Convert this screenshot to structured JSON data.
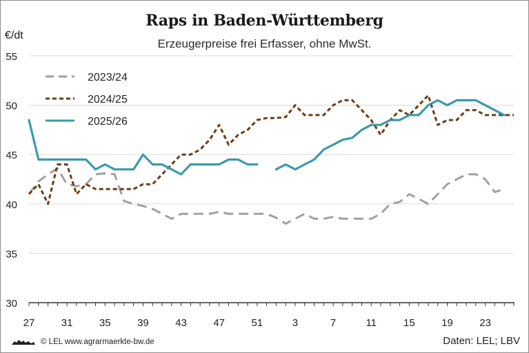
{
  "title": "Raps in Baden-Württemberg",
  "subtitle": "Erzeugerpreise frei Erfasser, ohne MwSt.",
  "unit_label": "€/dt",
  "copyright": "© LEL www.agrarmaerkte-bw.de",
  "source": "Daten: LEL; LBV",
  "chart_data": {
    "type": "line",
    "title": "Raps in Baden-Württemberg",
    "subtitle": "Erzeugerpreise frei Erfasser, ohne MwSt.",
    "ylabel": "€/dt",
    "xlabel": "",
    "ylim": [
      30,
      55
    ],
    "yticks": [
      30,
      35,
      40,
      45,
      50,
      55
    ],
    "x_tick_labels": [
      "27",
      "31",
      "35",
      "39",
      "43",
      "47",
      "51",
      "3",
      "7",
      "11",
      "15",
      "19",
      "23"
    ],
    "grid": "horizontal",
    "legend_position": "top-left",
    "x_sequence": [
      27,
      28,
      29,
      30,
      31,
      32,
      33,
      34,
      35,
      36,
      37,
      38,
      39,
      40,
      41,
      42,
      43,
      44,
      45,
      46,
      47,
      48,
      49,
      50,
      51,
      52,
      1,
      2,
      3,
      4,
      5,
      6,
      7,
      8,
      9,
      10,
      11,
      12,
      13,
      14,
      15,
      16,
      17,
      18,
      19,
      20,
      21,
      22,
      23,
      24,
      25,
      26
    ],
    "series": [
      {
        "name": "2023/24",
        "color": "#a0a0a0",
        "style": "dashed",
        "values": [
          41.0,
          42.3,
          43.0,
          43.6,
          42.0,
          41.8,
          42.0,
          43.0,
          43.1,
          43.0,
          40.3,
          40.0,
          39.8,
          39.5,
          39.0,
          38.5,
          39.0,
          39.0,
          39.0,
          39.0,
          39.2,
          39.0,
          39.0,
          39.0,
          39.0,
          39.0,
          38.6,
          38.0,
          38.5,
          39.0,
          38.5,
          38.5,
          38.7,
          38.5,
          38.5,
          38.5,
          38.5,
          39.0,
          40.0,
          40.2,
          41.0,
          40.5,
          40.0,
          41.0,
          42.0,
          42.5,
          43.0,
          43.0,
          42.5,
          41.2,
          41.5,
          null
        ]
      },
      {
        "name": "2024/25",
        "color": "#6b3d14",
        "style": "dashed",
        "values": [
          41.0,
          42.0,
          40.0,
          44.0,
          44.0,
          41.0,
          42.0,
          41.5,
          41.5,
          41.5,
          41.5,
          41.5,
          42.0,
          42.0,
          43.0,
          44.0,
          45.0,
          45.0,
          45.5,
          46.5,
          48.0,
          46.0,
          47.0,
          47.5,
          48.5,
          48.7,
          48.7,
          48.8,
          50.0,
          49.0,
          49.0,
          49.0,
          50.0,
          50.5,
          50.5,
          49.5,
          48.5,
          47.0,
          48.5,
          49.5,
          49.0,
          50.0,
          51.0,
          48.0,
          48.5,
          48.5,
          49.5,
          49.5,
          49.0,
          49.0,
          49.0,
          49.0
        ]
      },
      {
        "name": "2025/26",
        "color": "#3a9aaa",
        "style": "solid",
        "values": [
          48.5,
          44.5,
          44.5,
          44.5,
          44.5,
          44.5,
          44.5,
          43.5,
          44.0,
          43.5,
          43.5,
          43.5,
          45.0,
          44.0,
          44.0,
          43.5,
          43.0,
          44.0,
          44.0,
          44.0,
          44.0,
          44.5,
          44.5,
          44.0,
          44.0,
          null,
          43.5,
          44.0,
          43.5,
          44.0,
          44.5,
          45.5,
          46.0,
          46.5,
          46.7,
          47.5,
          48.0,
          48.0,
          48.5,
          48.5,
          49.0,
          49.0,
          50.0,
          50.5,
          50.0,
          50.5,
          50.5,
          50.5,
          50.0,
          49.5,
          49.0,
          null
        ]
      }
    ]
  }
}
